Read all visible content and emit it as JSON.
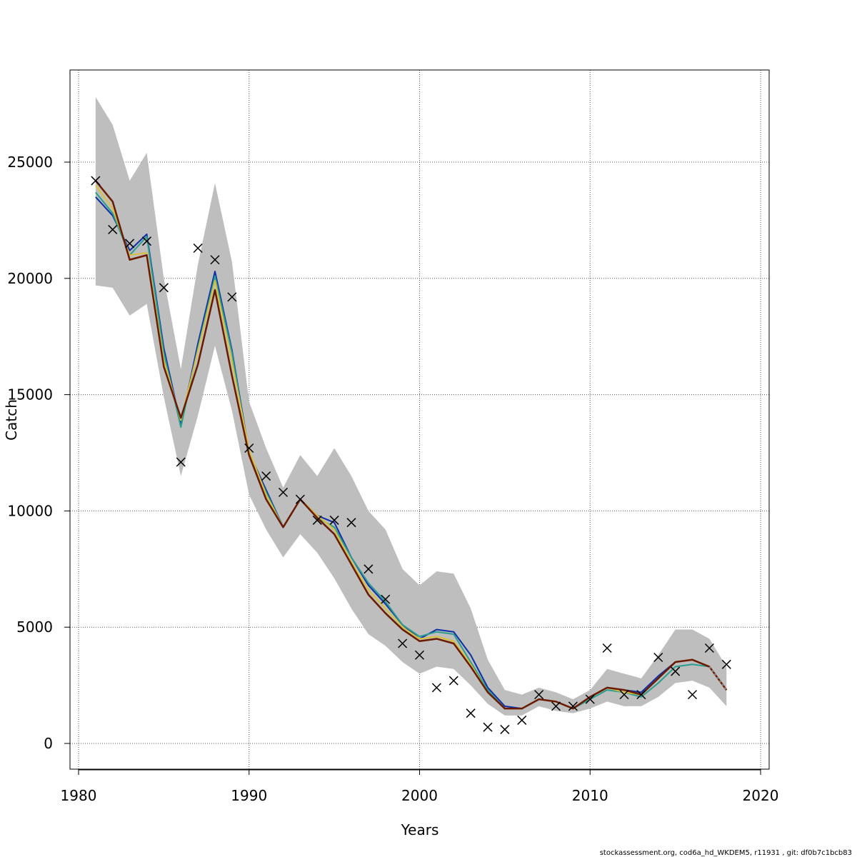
{
  "chart_data": {
    "type": "line",
    "title": "",
    "xlabel": "Years",
    "ylabel": "Catch",
    "xlim": [
      1980,
      2020
    ],
    "ylim": [
      0,
      25000
    ],
    "x_ticks": [
      "1980",
      "1990",
      "2000",
      "2010",
      "2020"
    ],
    "y_ticks": [
      "0",
      "5000",
      "10000",
      "15000",
      "20000",
      "25000"
    ],
    "grid": true,
    "footer": "stockassessment.org, cod6a_hd_WKDEM5, r11931 , git: df0b7c1bcb83",
    "years": [
      1981,
      1982,
      1983,
      1984,
      1985,
      1986,
      1987,
      1988,
      1989,
      1990,
      1991,
      1992,
      1993,
      1994,
      1995,
      1996,
      1997,
      1998,
      1999,
      2000,
      2001,
      2002,
      2003,
      2004,
      2005,
      2006,
      2007,
      2008,
      2009,
      2010,
      2011,
      2012,
      2013,
      2014,
      2015,
      2016,
      2017,
      2018
    ],
    "ci_upper": [
      27800,
      26600,
      24200,
      25400,
      20000,
      16100,
      20600,
      24100,
      20700,
      14700,
      12700,
      11000,
      12400,
      11500,
      12700,
      11500,
      10000,
      9200,
      7500,
      6800,
      7400,
      7300,
      5800,
      3600,
      2300,
      2100,
      2400,
      2200,
      1900,
      2300,
      3200,
      3000,
      2800,
      3800,
      4900,
      4900,
      4500,
      3300
    ],
    "ci_lower": [
      19700,
      19600,
      18400,
      18900,
      14900,
      11500,
      14100,
      17100,
      14300,
      10700,
      9200,
      8000,
      9000,
      8200,
      7100,
      5800,
      4700,
      4200,
      3500,
      3000,
      3300,
      3200,
      2500,
      1700,
      1200,
      1200,
      1600,
      1400,
      1300,
      1500,
      1800,
      1600,
      1600,
      2000,
      2600,
      2700,
      2400,
      1600
    ],
    "series": [
      {
        "name": "",
        "color": "#0d2ea8",
        "values": [
          23500,
          22700,
          21200,
          21900,
          17000,
          13700,
          17200,
          20300,
          16900,
          12500,
          10900,
          9300,
          10500,
          9800,
          9500,
          8000,
          6800,
          6000,
          5100,
          4500,
          4900,
          4800,
          3800,
          2400,
          1600,
          1500,
          1900,
          1800,
          1500,
          2000,
          2400,
          2300,
          2200,
          2900,
          3500,
          3600,
          3300,
          2300
        ]
      },
      {
        "name": "",
        "color": "#2a9d8f",
        "values": [
          23700,
          22800,
          21000,
          21800,
          16800,
          13600,
          17000,
          20100,
          16800,
          12400,
          10800,
          9300,
          10500,
          9700,
          9300,
          8000,
          6900,
          6100,
          5100,
          4600,
          4800,
          4700,
          3500,
          2300,
          1500,
          1500,
          1900,
          1800,
          1500,
          1900,
          2300,
          2200,
          2000,
          2600,
          3300,
          3400,
          3300,
          2300
        ]
      },
      {
        "name": "",
        "color": "#d9c23a",
        "values": [
          24000,
          23000,
          21000,
          21100,
          16500,
          13900,
          16900,
          19900,
          16400,
          12600,
          10700,
          9300,
          10500,
          9800,
          9200,
          7800,
          6600,
          5800,
          5000,
          4500,
          4600,
          4400,
          3400,
          2200,
          1500,
          1500,
          1900,
          1800,
          1500,
          2000,
          2400,
          2200,
          2100,
          2800,
          3500,
          3600,
          3300,
          2300
        ]
      },
      {
        "name": "",
        "color": "#6b1a00",
        "values": [
          24200,
          23300,
          20800,
          21000,
          16200,
          14000,
          16300,
          19500,
          15800,
          12400,
          10500,
          9300,
          10500,
          9700,
          9000,
          7700,
          6400,
          5600,
          4900,
          4400,
          4500,
          4300,
          3300,
          2200,
          1500,
          1500,
          1900,
          1800,
          1500,
          2000,
          2400,
          2300,
          2100,
          2800,
          3500,
          3600,
          3300,
          2300
        ]
      }
    ],
    "observed": [
      24200,
      22100,
      21500,
      21600,
      19600,
      12100,
      21300,
      20800,
      19200,
      12700,
      11500,
      10800,
      10500,
      9600,
      9600,
      9500,
      7500,
      6200,
      4300,
      3800,
      2400,
      2700,
      1300,
      700,
      600,
      1000,
      2100,
      1600,
      1600,
      1900,
      4100,
      2100,
      2100,
      3700,
      3100,
      2100,
      4100,
      3400
    ]
  }
}
